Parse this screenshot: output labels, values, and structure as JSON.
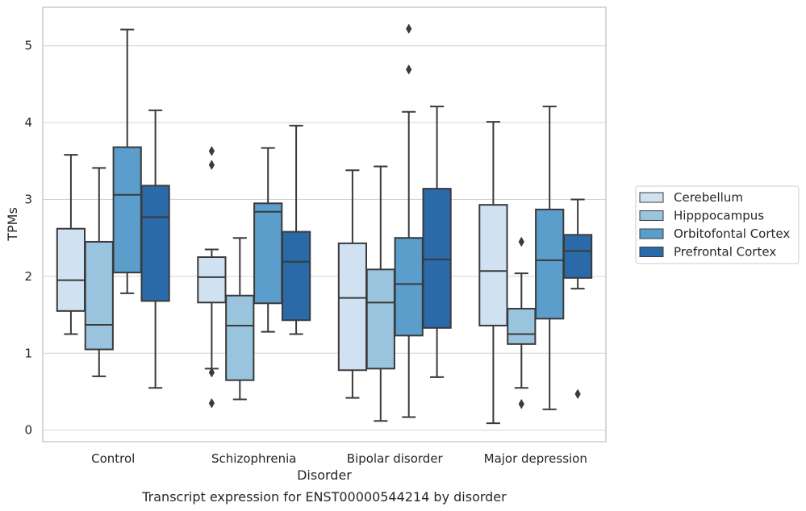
{
  "chart_data": {
    "type": "boxplot",
    "title": "",
    "xlabel": "Disorder",
    "ylabel": "TPMs",
    "caption": "Transcript expression for ENST00000544214 by disorder",
    "ylim": [
      -0.15,
      5.5
    ],
    "yticks": [
      0,
      1,
      2,
      3,
      4,
      5
    ],
    "grid": "horizontal",
    "legend_position": "right",
    "categories": [
      "Control",
      "Schizophrenia",
      "Bipolar disorder",
      "Major depression"
    ],
    "series": [
      {
        "name": "Cerebellum",
        "color": "#d0e1f2",
        "boxes": [
          {
            "whislo": 1.25,
            "q1": 1.55,
            "med": 1.95,
            "q3": 2.62,
            "whishi": 3.58,
            "fliers": []
          },
          {
            "whislo": 0.8,
            "q1": 1.66,
            "med": 1.99,
            "q3": 2.25,
            "whishi": 2.35,
            "fliers": [
              3.63,
              3.45,
              0.75,
              0.35
            ]
          },
          {
            "whislo": 0.42,
            "q1": 0.78,
            "med": 1.72,
            "q3": 2.43,
            "whishi": 3.38,
            "fliers": []
          },
          {
            "whislo": 0.09,
            "q1": 1.36,
            "med": 2.07,
            "q3": 2.93,
            "whishi": 4.01,
            "fliers": []
          }
        ]
      },
      {
        "name": "Hipppocampus",
        "color": "#9ac3dd",
        "boxes": [
          {
            "whislo": 0.7,
            "q1": 1.05,
            "med": 1.37,
            "q3": 2.45,
            "whishi": 3.41,
            "fliers": []
          },
          {
            "whislo": 0.4,
            "q1": 0.65,
            "med": 1.36,
            "q3": 1.75,
            "whishi": 2.5,
            "fliers": []
          },
          {
            "whislo": 0.12,
            "q1": 0.8,
            "med": 1.66,
            "q3": 2.09,
            "whishi": 3.43,
            "fliers": []
          },
          {
            "whislo": 0.55,
            "q1": 1.12,
            "med": 1.25,
            "q3": 1.58,
            "whishi": 2.04,
            "fliers": [
              2.45,
              0.34
            ]
          }
        ]
      },
      {
        "name": "Orbitofontal Cortex",
        "color": "#5b9ecb",
        "boxes": [
          {
            "whislo": 1.78,
            "q1": 2.05,
            "med": 3.06,
            "q3": 3.68,
            "whishi": 5.21,
            "fliers": []
          },
          {
            "whislo": 1.28,
            "q1": 1.65,
            "med": 2.84,
            "q3": 2.95,
            "whishi": 3.67,
            "fliers": []
          },
          {
            "whislo": 0.17,
            "q1": 1.23,
            "med": 1.9,
            "q3": 2.5,
            "whishi": 4.14,
            "fliers": [
              5.22,
              4.69
            ]
          },
          {
            "whislo": 0.27,
            "q1": 1.45,
            "med": 2.21,
            "q3": 2.87,
            "whishi": 4.21,
            "fliers": []
          }
        ]
      },
      {
        "name": "Prefrontal Cortex",
        "color": "#2b6aa9",
        "boxes": [
          {
            "whislo": 0.55,
            "q1": 1.68,
            "med": 2.77,
            "q3": 3.18,
            "whishi": 4.16,
            "fliers": []
          },
          {
            "whislo": 1.25,
            "q1": 1.43,
            "med": 2.19,
            "q3": 2.58,
            "whishi": 3.96,
            "fliers": []
          },
          {
            "whislo": 0.69,
            "q1": 1.33,
            "med": 2.22,
            "q3": 3.14,
            "whishi": 4.21,
            "fliers": []
          },
          {
            "whislo": 1.84,
            "q1": 1.98,
            "med": 2.33,
            "q3": 2.54,
            "whishi": 3.0,
            "fliers": [
              0.47
            ]
          }
        ]
      }
    ]
  },
  "colors": {
    "line": "#3a3a3a",
    "grid": "#d3d3d3",
    "frame": "#cccccc"
  }
}
